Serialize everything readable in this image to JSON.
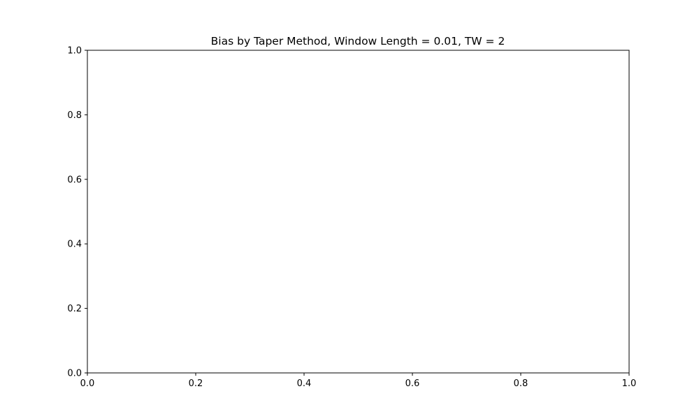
{
  "chart_data": {
    "type": "line",
    "title": "Bias by Taper Method, Window Length = 0.01, TW = 2",
    "xlabel": "",
    "ylabel": "",
    "xlim": [
      0.0,
      1.0
    ],
    "ylim": [
      0.0,
      1.0
    ],
    "x_ticks": [
      "0.0",
      "0.2",
      "0.4",
      "0.6",
      "0.8",
      "1.0"
    ],
    "y_ticks": [
      "0.0",
      "0.2",
      "0.4",
      "0.6",
      "0.8",
      "1.0"
    ],
    "series": [],
    "grid": false,
    "legend": "none"
  }
}
